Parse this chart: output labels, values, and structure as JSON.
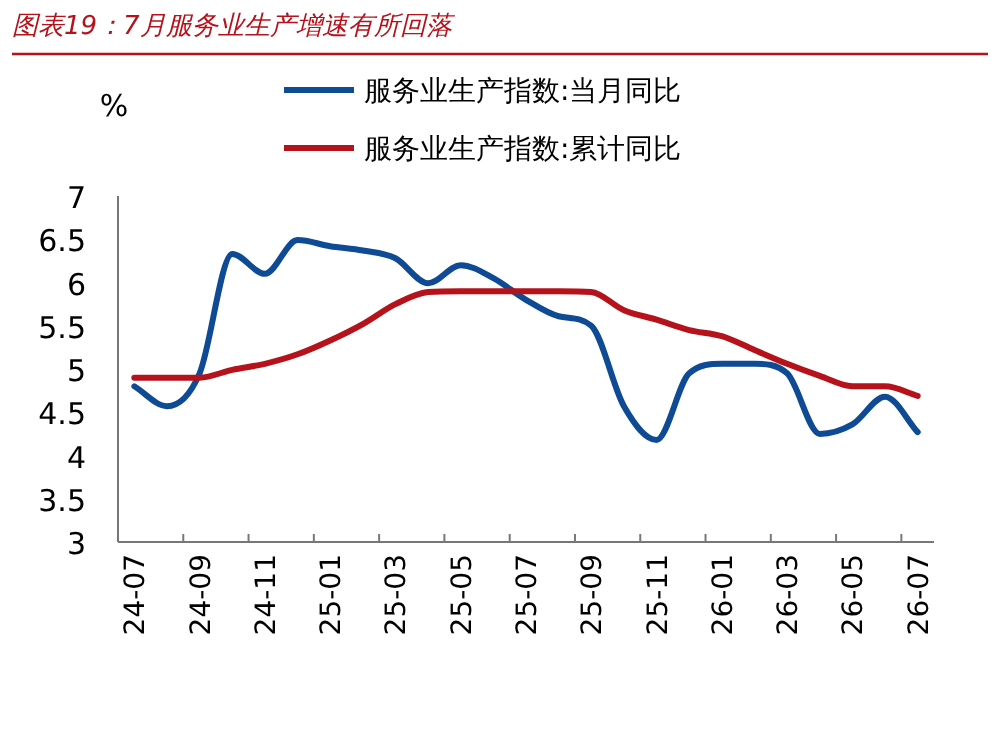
{
  "chart_data": {
    "type": "line",
    "title": "图表19：7月服务业生产增速有所回落",
    "ylabel": "%",
    "categories": [
      "24-07",
      null,
      "24-09",
      null,
      "24-11",
      null,
      "25-01",
      null,
      "25-03",
      null,
      "25-05",
      null,
      "25-07",
      null,
      "25-09",
      null,
      "25-11",
      null,
      "26-01",
      null,
      "26-03",
      null,
      "26-05",
      null,
      "26-07"
    ],
    "series": [
      {
        "name": "服务业生产指数:当月同比",
        "color": "#0f4a94",
        "values": [
          4.8,
          4.57,
          4.95,
          6.33,
          6.1,
          6.49,
          6.42,
          6.37,
          6.28,
          5.99,
          6.2,
          6.05,
          5.8,
          5.61,
          5.5,
          4.57,
          4.18,
          4.95,
          5.06,
          5.06,
          4.95,
          4.25,
          4.36,
          4.68,
          4.27
        ]
      },
      {
        "name": "服务业生产指数:累计同比",
        "color": "#b5121b",
        "values": [
          4.9,
          4.9,
          4.9,
          4.99,
          5.06,
          5.17,
          5.33,
          5.52,
          5.75,
          5.89,
          5.9,
          5.9,
          5.9,
          5.9,
          5.89,
          5.68,
          5.57,
          5.45,
          5.38,
          5.22,
          5.06,
          4.92,
          4.8,
          4.8,
          4.69
        ]
      }
    ],
    "ylim": [
      3,
      7
    ],
    "yticks": [
      3,
      3.5,
      4,
      4.5,
      5,
      5.5,
      6,
      6.5,
      7
    ],
    "grid": false,
    "legend": "top",
    "line_style": "solid",
    "marker": "none"
  }
}
